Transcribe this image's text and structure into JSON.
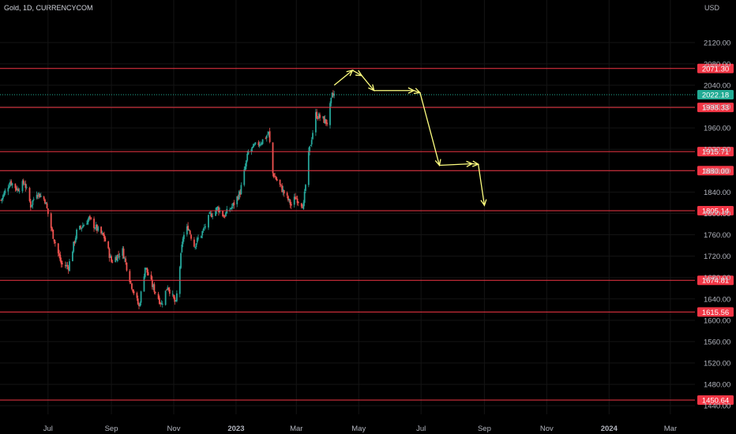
{
  "header": {
    "symbol_label": "Gold, 1D, CURRENCYCOM",
    "currency": "USD"
  },
  "chart_data": {
    "type": "candlestick",
    "x_ticks": [
      "Jul",
      "Sep",
      "Nov",
      "2023",
      "Mar",
      "May",
      "Jul",
      "Sep",
      "Nov",
      "2024",
      "Mar"
    ],
    "y_ticks": [
      1440,
      1480,
      1520,
      1560,
      1600,
      1640,
      1680,
      1720,
      1760,
      1800,
      1840,
      1880,
      1920,
      1960,
      2000,
      2040,
      2080,
      2120
    ],
    "ylim": [
      1424,
      2167
    ],
    "x_range": [
      "2022-05-15",
      "2024-03-25"
    ],
    "current_price": {
      "label": "2022.18",
      "value": 2022.18,
      "color": "#22ab94"
    },
    "horizontal_levels": [
      {
        "label": "2071.30",
        "value": 2071.3
      },
      {
        "label": "1998.33",
        "value": 1998.33
      },
      {
        "label": "1915.71",
        "value": 1915.71
      },
      {
        "label": "1880.00",
        "value": 1880.0
      },
      {
        "label": "1805.14",
        "value": 1805.14
      },
      {
        "label": "1674.81",
        "value": 1674.81
      },
      {
        "label": "1615.56",
        "value": 1615.56
      },
      {
        "label": "1450.64",
        "value": 1450.64
      }
    ],
    "price_path": [
      [
        "2022-05-16",
        1825
      ],
      [
        "2022-05-25",
        1860
      ],
      [
        "2022-06-01",
        1845
      ],
      [
        "2022-06-08",
        1858
      ],
      [
        "2022-06-14",
        1815
      ],
      [
        "2022-06-20",
        1840
      ],
      [
        "2022-06-28",
        1825
      ],
      [
        "2022-07-05",
        1765
      ],
      [
        "2022-07-14",
        1705
      ],
      [
        "2022-07-21",
        1700
      ],
      [
        "2022-07-29",
        1765
      ],
      [
        "2022-08-10",
        1790
      ],
      [
        "2022-08-16",
        1775
      ],
      [
        "2022-08-25",
        1755
      ],
      [
        "2022-09-01",
        1710
      ],
      [
        "2022-09-12",
        1730
      ],
      [
        "2022-09-20",
        1670
      ],
      [
        "2022-09-28",
        1625
      ],
      [
        "2022-10-04",
        1700
      ],
      [
        "2022-10-11",
        1665
      ],
      [
        "2022-10-20",
        1630
      ],
      [
        "2022-10-26",
        1665
      ],
      [
        "2022-11-03",
        1630
      ],
      [
        "2022-11-10",
        1755
      ],
      [
        "2022-11-15",
        1775
      ],
      [
        "2022-11-21",
        1740
      ],
      [
        "2022-11-30",
        1768
      ],
      [
        "2022-12-06",
        1795
      ],
      [
        "2022-12-14",
        1810
      ],
      [
        "2022-12-20",
        1795
      ],
      [
        "2022-12-29",
        1815
      ],
      [
        "2023-01-05",
        1840
      ],
      [
        "2023-01-13",
        1915
      ],
      [
        "2023-01-19",
        1925
      ],
      [
        "2023-01-26",
        1935
      ],
      [
        "2023-02-02",
        1950
      ],
      [
        "2023-02-06",
        1875
      ],
      [
        "2023-02-15",
        1845
      ],
      [
        "2023-02-24",
        1815
      ],
      [
        "2023-02-28",
        1830
      ],
      [
        "2023-03-08",
        1815
      ],
      [
        "2023-03-13",
        1910
      ],
      [
        "2023-03-20",
        1985
      ],
      [
        "2023-03-24",
        1980
      ],
      [
        "2023-03-31",
        1970
      ],
      [
        "2023-04-05",
        2020
      ],
      [
        "2023-04-07",
        2022.18
      ]
    ],
    "projection_path": [
      [
        "2023-04-07",
        2040
      ],
      [
        "2023-04-25",
        2068
      ],
      [
        "2023-05-04",
        2058
      ],
      [
        "2023-05-16",
        2030
      ],
      [
        "2023-06-24",
        2030
      ],
      [
        "2023-06-30",
        2026
      ],
      [
        "2023-07-19",
        1890
      ],
      [
        "2023-08-20",
        1893
      ],
      [
        "2023-08-26",
        1892
      ],
      [
        "2023-09-01",
        1815
      ]
    ],
    "colors": {
      "up": "#26a69a",
      "down": "#ef5350",
      "level_line": "#f23645",
      "level_label_bg": "#f23645",
      "projection": "#ffff80"
    },
    "grid": true
  }
}
